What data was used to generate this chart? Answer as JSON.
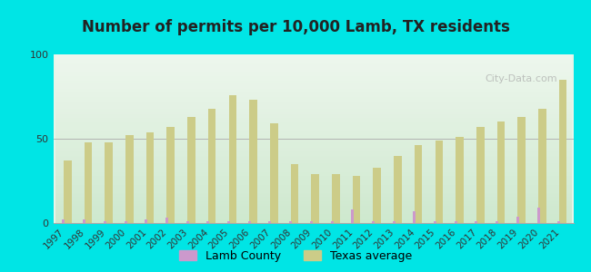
{
  "title": "Number of permits per 10,000 Lamb, TX residents",
  "years": [
    1997,
    1998,
    1999,
    2000,
    2001,
    2002,
    2003,
    2004,
    2005,
    2006,
    2007,
    2008,
    2009,
    2010,
    2011,
    2012,
    2013,
    2014,
    2015,
    2016,
    2017,
    2018,
    2019,
    2020,
    2021
  ],
  "lamb_county": [
    2,
    2,
    1,
    1,
    2,
    3,
    1,
    1,
    1,
    1,
    1,
    1,
    1,
    1,
    8,
    1,
    1,
    7,
    1,
    1,
    1,
    1,
    4,
    9,
    1
  ],
  "texas_avg": [
    37,
    48,
    48,
    52,
    54,
    57,
    63,
    68,
    76,
    73,
    59,
    35,
    29,
    29,
    28,
    33,
    40,
    46,
    49,
    51,
    57,
    60,
    63,
    68,
    85
  ],
  "lamb_color": "#cc99cc",
  "texas_color": "#cccc88",
  "background_color": "#e8f5e8",
  "outer_background": "#00e5e5",
  "title_color": "#222222",
  "ylim": [
    0,
    100
  ],
  "yticks": [
    0,
    50,
    100
  ],
  "legend_lamb": "Lamb County",
  "legend_texas": "Texas average",
  "watermark": "City-Data.com"
}
